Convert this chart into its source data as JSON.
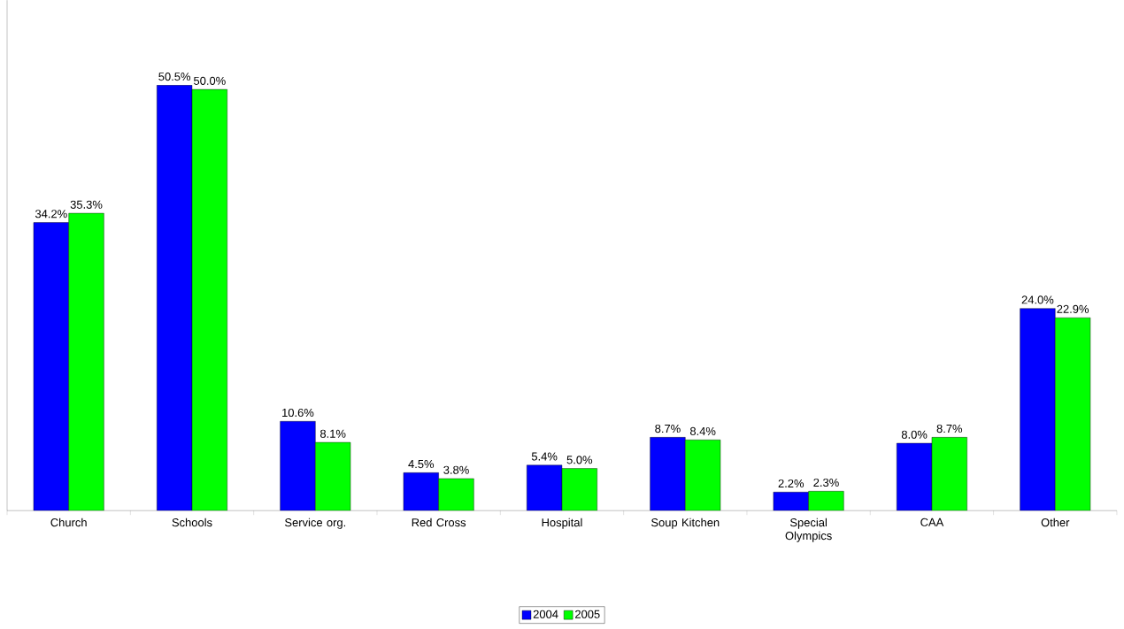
{
  "chart_data": {
    "type": "bar",
    "categories": [
      "Church",
      "Schools",
      "Service org.",
      "Red Cross",
      "Hospital",
      "Soup Kitchen",
      "Special Olympics",
      "CAA",
      "Other"
    ],
    "series": [
      {
        "name": "2004",
        "color": "#0000ff",
        "values": [
          34.2,
          50.5,
          10.6,
          4.5,
          5.4,
          8.7,
          2.2,
          8.0,
          24.0
        ],
        "value_labels": [
          "34.2%",
          "50.5%",
          "10.6%",
          "4.5%",
          "5.4%",
          "8.7%",
          "2.2%",
          "8.0%",
          "24.0%"
        ]
      },
      {
        "name": "2005",
        "color": "#00ff00",
        "values": [
          35.3,
          50.0,
          8.1,
          3.8,
          5.0,
          8.4,
          2.3,
          8.7,
          22.9
        ],
        "value_labels": [
          "35.3%",
          "50.0%",
          "8.1%",
          "3.8%",
          "5.0%",
          "8.4%",
          "2.3%",
          "8.7%",
          "22.9%"
        ]
      }
    ],
    "legend": "bottom"
  }
}
